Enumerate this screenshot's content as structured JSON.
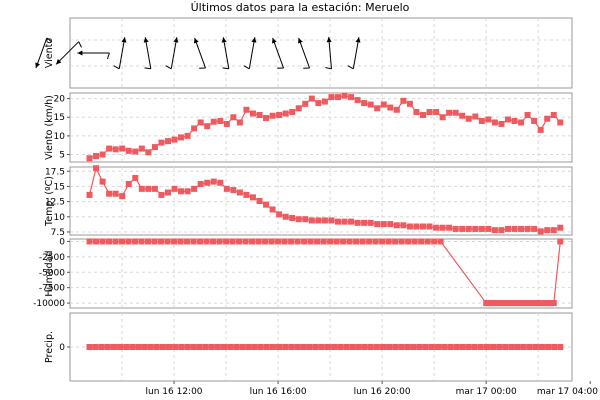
{
  "page": {
    "title": "Últimos datos para la estación: Meruelo"
  },
  "colors": {
    "series": "#ef5a5f",
    "arrow": "#000000"
  },
  "chart_data": [
    {
      "type": "wind-direction",
      "ylabel": "Viento",
      "x_hours": [
        6.9,
        7.9,
        8.9,
        10.0,
        11.0,
        12.0,
        13.0,
        14.0,
        15.0,
        16.0,
        17.0,
        18.0,
        19.0
      ],
      "direction_deg": [
        200,
        225,
        270,
        10,
        350,
        10,
        340,
        350,
        10,
        340,
        340,
        355,
        10
      ]
    },
    {
      "type": "line",
      "ylabel": "Viento (km/h)",
      "ylim": [
        3,
        21.5
      ],
      "yticks": [
        5,
        10,
        15,
        20
      ],
      "x_start": 8.75,
      "x_step": 0.25,
      "values": [
        4,
        4.6,
        5,
        6.6,
        6.4,
        6.6,
        6,
        5.8,
        6.6,
        5.6,
        7,
        8.2,
        8.6,
        9,
        9.6,
        10,
        12,
        13.6,
        12.6,
        13.8,
        14,
        13.2,
        15,
        13.6,
        17,
        16,
        15.6,
        14.8,
        15.4,
        15.6,
        16,
        16.4,
        17.4,
        18.6,
        20,
        18.8,
        19.2,
        20.4,
        20.4,
        20.8,
        20.4,
        19.6,
        18.8,
        18.4,
        17.4,
        18.4,
        17.6,
        17,
        19.4,
        18.6,
        16.4,
        15.6,
        16.4,
        16.4,
        15,
        16.2,
        16.2,
        15.4,
        14.6,
        15.2,
        14,
        14.4,
        13.6,
        13.2,
        14.4,
        14,
        13.6,
        15.6,
        14,
        11.6,
        14.6,
        15.6,
        13.6
      ],
      "xlim": [
        8.0,
        27.3
      ]
    },
    {
      "type": "line",
      "ylabel": "Temp. (ºC)",
      "ylim": [
        7,
        18.2
      ],
      "yticks": [
        7.5,
        10,
        12.5,
        15,
        17.5
      ],
      "x_start": 8.75,
      "x_step": 0.25,
      "values": [
        13.6,
        18,
        15.8,
        13.8,
        13.8,
        13.4,
        15.4,
        16.4,
        14.6,
        14.6,
        14.6,
        13.6,
        14,
        14.6,
        14.2,
        14.2,
        14.6,
        15.4,
        15.6,
        15.8,
        15.6,
        14.6,
        14.4,
        14,
        13.6,
        13.2,
        12.6,
        12,
        11.2,
        10.4,
        10,
        9.8,
        9.6,
        9.6,
        9.4,
        9.4,
        9.4,
        9.4,
        9.2,
        9.2,
        9.2,
        9,
        9,
        9,
        8.8,
        8.8,
        8.8,
        8.6,
        8.6,
        8.4,
        8.4,
        8.4,
        8.4,
        8.2,
        8.2,
        8.2,
        8,
        8,
        8,
        8,
        8,
        8,
        7.8,
        7.8,
        8,
        8,
        8,
        8,
        8,
        7.6,
        7.8,
        7.8,
        8.2
      ],
      "xlim": [
        8.0,
        27.3
      ]
    },
    {
      "type": "line",
      "ylabel": "Humedad",
      "ylim": [
        -10800,
        400
      ],
      "yticks": [
        0,
        -2500,
        -5000,
        -7500,
        -10000
      ],
      "x_start": 8.75,
      "x_step": 0.25,
      "values": [
        0,
        0,
        0,
        0,
        0,
        0,
        0,
        0,
        0,
        0,
        0,
        0,
        0,
        0,
        0,
        0,
        0,
        0,
        0,
        0,
        0,
        0,
        0,
        0,
        0,
        0,
        0,
        0,
        0,
        0,
        0,
        0,
        0,
        0,
        0,
        0,
        0,
        0,
        0,
        0,
        0,
        0,
        0,
        0,
        0,
        0,
        0,
        0,
        0,
        0,
        0,
        0,
        0,
        0,
        0,
        -10000,
        -10000,
        -10000,
        -10000,
        -10000,
        -10000,
        -10000,
        -10000,
        -10000,
        -10000,
        -10000,
        -10000,
        -10000,
        -10000,
        -10000,
        -10000,
        -10000,
        -10000,
        -10000,
        -10000,
        -10000,
        -10000,
        0
      ],
      "x_values_override": "humidity",
      "xlim": [
        8.0,
        27.3
      ]
    },
    {
      "type": "line",
      "ylabel": "Precip.",
      "ylim": [
        -1,
        1
      ],
      "yticks": [
        0
      ],
      "x_start": 8.75,
      "x_step": 0.25,
      "values": [
        0,
        0,
        0,
        0,
        0,
        0,
        0,
        0,
        0,
        0,
        0,
        0,
        0,
        0,
        0,
        0,
        0,
        0,
        0,
        0,
        0,
        0,
        0,
        0,
        0,
        0,
        0,
        0,
        0,
        0,
        0,
        0,
        0,
        0,
        0,
        0,
        0,
        0,
        0,
        0,
        0,
        0,
        0,
        0,
        0,
        0,
        0,
        0,
        0,
        0,
        0,
        0,
        0,
        0,
        0,
        0,
        0,
        0,
        0,
        0,
        0,
        0,
        0,
        0,
        0,
        0,
        0,
        0,
        0,
        0,
        0,
        0,
        0,
        0,
        0,
        0,
        0,
        0
      ],
      "xlim": [
        8.0,
        27.3
      ]
    }
  ],
  "x_axis": {
    "ticks": [
      {
        "hour": 12,
        "label": "lun 16 12:00"
      },
      {
        "hour": 16,
        "label": "lun 16 16:00"
      },
      {
        "hour": 20,
        "label": "lun 16 20:00"
      },
      {
        "hour": 24,
        "label": "mar 17 00:00"
      },
      {
        "hour": 28,
        "label": "mar 17 04:00"
      }
    ]
  }
}
